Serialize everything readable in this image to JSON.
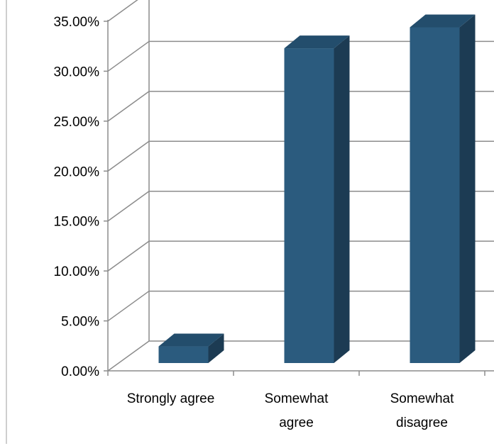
{
  "chart_data": {
    "type": "bar",
    "style": "3d-column",
    "categories": [
      "Strongly agree",
      "Somewhat agree",
      "Somewhat disagree"
    ],
    "category_lines": [
      [
        "Strongly agree"
      ],
      [
        "Somewhat",
        "agree"
      ],
      [
        "Somewhat",
        "disagree"
      ]
    ],
    "values": [
      1.95,
      31.8,
      33.9
    ],
    "ylim": [
      0,
      35
    ],
    "yticks": [
      "0.00%",
      "5.00%",
      "10.00%",
      "15.00%",
      "20.00%",
      "25.00%",
      "30.00%",
      "35.00%"
    ],
    "grid": true,
    "legend": "none",
    "colors": {
      "bar_front": "#2b5b7e",
      "bar_top": "#234d6c",
      "bar_side": "#1c3b53",
      "grid": "#8c8c8c",
      "axis": "#8c8c8c"
    }
  }
}
